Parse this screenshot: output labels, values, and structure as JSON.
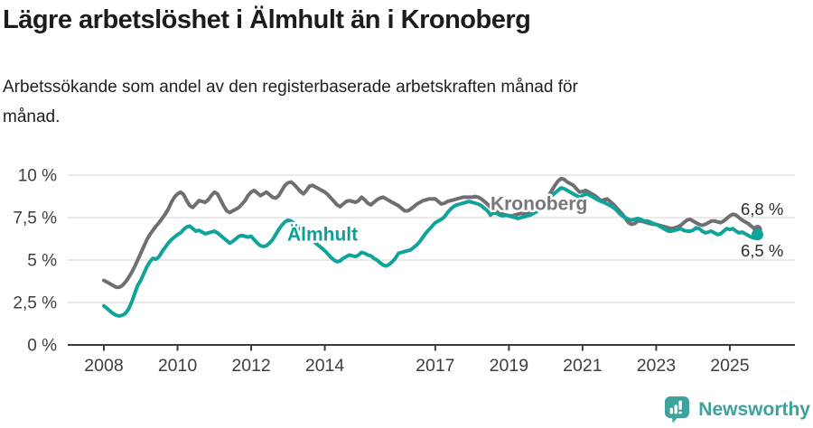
{
  "header": {
    "title": "Lägre arbetslöshet i Älmhult än i Kronoberg",
    "subtitle": "Arbetssökande som andel av den registerbaserade arbetskraften månad för månad."
  },
  "chart_data": {
    "type": "line",
    "unit": "%",
    "start": "2008-01",
    "frequency": "monthly",
    "grid": "horizontal",
    "legend_position": "inline-labels",
    "ylim": [
      0,
      10.5
    ],
    "y_ticks": [
      0,
      2.5,
      5,
      7.5,
      10
    ],
    "y_tick_labels": [
      "0 %",
      "2,5 %",
      "5 %",
      "7,5 %",
      "10 %"
    ],
    "x_ticks": [
      2008,
      2010,
      2012,
      2014,
      2017,
      2019,
      2021,
      2023,
      2025
    ],
    "series": [
      {
        "name": "Kronoberg",
        "color": "#6E6E73",
        "end_label": "6,8 %",
        "end_label_position": "above",
        "end_dot_radius": 5.2,
        "label_anchor": {
          "year": 2018.5,
          "value": 7.95
        },
        "values": [
          3.8,
          3.7,
          3.6,
          3.5,
          3.4,
          3.4,
          3.5,
          3.7,
          3.95,
          4.25,
          4.6,
          5.0,
          5.4,
          5.8,
          6.2,
          6.5,
          6.75,
          7.0,
          7.2,
          7.45,
          7.7,
          8.0,
          8.4,
          8.7,
          8.9,
          9.0,
          8.85,
          8.5,
          8.2,
          8.1,
          8.3,
          8.5,
          8.45,
          8.4,
          8.55,
          8.8,
          9.0,
          8.9,
          8.55,
          8.2,
          7.9,
          7.8,
          7.9,
          8.0,
          8.1,
          8.3,
          8.5,
          8.8,
          9.0,
          9.1,
          8.95,
          8.8,
          8.9,
          9.0,
          8.85,
          8.7,
          8.65,
          8.8,
          9.1,
          9.4,
          9.55,
          9.6,
          9.45,
          9.25,
          9.05,
          8.9,
          9.1,
          9.35,
          9.4,
          9.3,
          9.2,
          9.1,
          9.0,
          8.85,
          8.65,
          8.45,
          8.25,
          8.15,
          8.3,
          8.45,
          8.5,
          8.45,
          8.4,
          8.5,
          8.7,
          8.55,
          8.35,
          8.25,
          8.4,
          8.55,
          8.65,
          8.7,
          8.6,
          8.5,
          8.4,
          8.3,
          8.2,
          8.05,
          7.9,
          7.9,
          8.0,
          8.15,
          8.3,
          8.4,
          8.5,
          8.55,
          8.6,
          8.6,
          8.6,
          8.45,
          8.3,
          8.35,
          8.45,
          8.5,
          8.55,
          8.6,
          8.65,
          8.7,
          8.7,
          8.7,
          8.7,
          8.75,
          8.7,
          8.6,
          8.45,
          8.3,
          8.1,
          7.95,
          7.85,
          7.75,
          7.7,
          7.65,
          7.6,
          7.6,
          7.65,
          7.7,
          7.75,
          7.7,
          7.75,
          7.8,
          7.9,
          8.0,
          8.15,
          8.3,
          8.5,
          8.8,
          9.1,
          9.4,
          9.65,
          9.8,
          9.75,
          9.6,
          9.5,
          9.4,
          9.2,
          9.0,
          9.05,
          9.1,
          9.0,
          8.9,
          8.8,
          8.65,
          8.5,
          8.55,
          8.6,
          8.45,
          8.3,
          8.1,
          7.9,
          7.7,
          7.45,
          7.2,
          7.1,
          7.15,
          7.3,
          7.3,
          7.25,
          7.2,
          7.15,
          7.1,
          7.1,
          7.05,
          7.0,
          6.95,
          6.9,
          6.85,
          6.9,
          6.95,
          7.05,
          7.2,
          7.35,
          7.4,
          7.3,
          7.2,
          7.1,
          7.05,
          7.1,
          7.2,
          7.3,
          7.3,
          7.25,
          7.2,
          7.3,
          7.45,
          7.6,
          7.7,
          7.65,
          7.5,
          7.35,
          7.25,
          7.15,
          7.0,
          6.85,
          6.8
        ]
      },
      {
        "name": "Älmhult",
        "color": "#0FA39A",
        "end_label": "6,5 %",
        "end_label_position": "below",
        "end_dot_radius": 6.5,
        "label_anchor": {
          "year": 2012.98,
          "value": 6.15
        },
        "values": [
          2.3,
          2.15,
          2.0,
          1.85,
          1.75,
          1.7,
          1.75,
          1.85,
          2.1,
          2.5,
          3.0,
          3.5,
          3.8,
          4.2,
          4.6,
          4.9,
          5.1,
          5.05,
          5.2,
          5.5,
          5.75,
          6.0,
          6.2,
          6.35,
          6.5,
          6.6,
          6.8,
          6.95,
          7.0,
          6.85,
          6.7,
          6.75,
          6.65,
          6.55,
          6.6,
          6.65,
          6.7,
          6.6,
          6.45,
          6.3,
          6.15,
          6.0,
          6.1,
          6.25,
          6.4,
          6.45,
          6.4,
          6.35,
          6.4,
          6.2,
          6.0,
          5.85,
          5.8,
          5.85,
          6.0,
          6.2,
          6.5,
          6.8,
          7.05,
          7.25,
          7.35,
          7.3,
          7.15,
          7.0,
          6.85,
          6.7,
          6.5,
          6.35,
          6.2,
          6.0,
          5.85,
          5.7,
          5.55,
          5.35,
          5.15,
          5.0,
          4.9,
          4.95,
          5.1,
          5.2,
          5.3,
          5.25,
          5.2,
          5.3,
          5.45,
          5.4,
          5.3,
          5.25,
          5.1,
          5.0,
          4.85,
          4.7,
          4.65,
          4.75,
          4.9,
          5.1,
          5.4,
          5.45,
          5.5,
          5.55,
          5.6,
          5.75,
          5.9,
          6.1,
          6.35,
          6.6,
          6.8,
          7.0,
          7.2,
          7.3,
          7.4,
          7.55,
          7.8,
          8.0,
          8.15,
          8.25,
          8.3,
          8.35,
          8.4,
          8.45,
          8.4,
          8.35,
          8.3,
          8.2,
          8.05,
          7.9,
          7.65,
          7.8,
          7.75,
          7.65,
          7.6,
          7.65,
          7.6,
          7.55,
          7.5,
          7.45,
          7.5,
          7.55,
          7.6,
          7.65,
          7.75,
          7.85,
          8.0,
          8.2,
          8.4,
          8.6,
          8.8,
          8.95,
          9.1,
          9.25,
          9.2,
          9.1,
          9.0,
          8.9,
          8.8,
          8.7,
          8.8,
          8.9,
          8.85,
          8.75,
          8.65,
          8.55,
          8.45,
          8.4,
          8.3,
          8.2,
          8.1,
          7.95,
          7.75,
          7.6,
          7.5,
          7.4,
          7.35,
          7.4,
          7.45,
          7.4,
          7.3,
          7.3,
          7.25,
          7.15,
          7.1,
          7.0,
          6.9,
          6.8,
          6.7,
          6.7,
          6.75,
          6.8,
          6.85,
          6.75,
          6.7,
          6.7,
          6.75,
          6.9,
          6.85,
          6.7,
          6.6,
          6.65,
          6.7,
          6.6,
          6.5,
          6.55,
          6.7,
          6.85,
          6.8,
          6.85,
          6.7,
          6.6,
          6.65,
          6.55,
          6.45,
          6.35,
          6.3,
          6.5
        ]
      }
    ]
  },
  "colors": {
    "grid": "#E2E2E2",
    "axis": "#3B3B3B",
    "tick_text": "#3E3E3E",
    "end_label_text": "#2D2D2D",
    "kronoberg_label": "#76767B",
    "almhult_label": "#0BA09A",
    "brand_teal": "#3EA39D"
  },
  "footer": {
    "brand": "Newsworthy"
  }
}
